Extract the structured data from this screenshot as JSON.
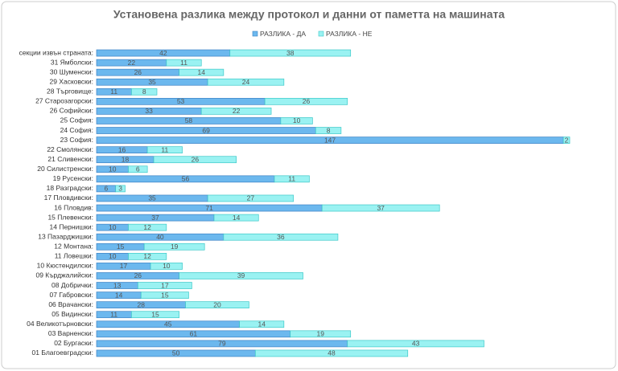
{
  "chart_data": {
    "type": "bar",
    "orientation": "horizontal",
    "stacked": true,
    "title": "Установена разлика между протокол и данни от паметта на машината",
    "categories": [
      "секции извън страната:",
      "31 Ямболски:",
      "30 Шуменски:",
      "29 Хасковски:",
      "28 Търговище:",
      "27 Старозагорски:",
      "26 Софийски:",
      "25 София:",
      "24 София:",
      "23 София:",
      "22 Смолянски:",
      "21 Сливенски:",
      "20 Силистренски:",
      "19 Русенски:",
      "18 Разградски:",
      "17 Пловдивски:",
      "16 Пловдив:",
      "15 Плевенски:",
      "14 Пернишки:",
      "13 Пазарджишки:",
      "12 Монтана:",
      "11 Ловешки:",
      "10 Кюстендилски:",
      "09 Кърджалийски:",
      "08 Добрички:",
      "07 Габровски:",
      "06 Врачански:",
      "05 Видински:",
      "04 Великотърновски:",
      "03 Варненски:",
      "02 Бургаски:",
      "01 Благоевградски:"
    ],
    "series": [
      {
        "name": "РАЗЛИКА - ДА",
        "color": "#6cb8ee",
        "values": [
          42,
          22,
          26,
          35,
          11,
          53,
          33,
          58,
          69,
          147,
          16,
          18,
          10,
          56,
          6,
          35,
          71,
          37,
          10,
          40,
          15,
          10,
          17,
          26,
          13,
          14,
          28,
          11,
          45,
          61,
          79,
          50
        ]
      },
      {
        "name": "РАЗЛИКА - НЕ",
        "color": "#9af2f2",
        "values": [
          38,
          11,
          14,
          24,
          8,
          26,
          22,
          10,
          8,
          2,
          11,
          26,
          6,
          11,
          3,
          27,
          37,
          14,
          12,
          36,
          19,
          12,
          10,
          39,
          17,
          15,
          20,
          15,
          14,
          19,
          43,
          48
        ]
      }
    ],
    "legend": "top"
  }
}
